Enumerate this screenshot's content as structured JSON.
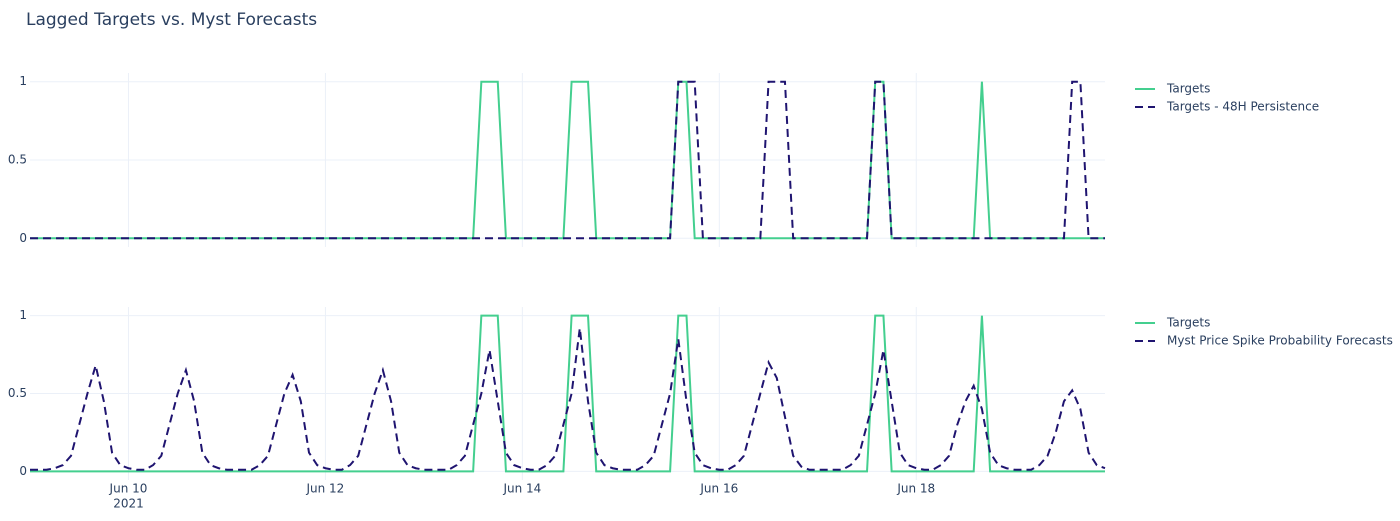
{
  "chart_data": [
    {
      "type": "line",
      "title": "Lagged Targets vs. Myst Forecasts",
      "x": [
        "2021-06-09T00:00",
        "2021-06-09T02:00",
        "2021-06-09T04:00",
        "2021-06-09T06:00",
        "2021-06-09T08:00",
        "2021-06-09T10:00",
        "2021-06-09T12:00",
        "2021-06-09T14:00",
        "2021-06-09T16:00",
        "2021-06-09T18:00",
        "2021-06-09T20:00",
        "2021-06-09T22:00",
        "2021-06-10T00:00",
        "2021-06-10T02:00",
        "2021-06-10T04:00",
        "2021-06-10T06:00",
        "2021-06-10T08:00",
        "2021-06-10T10:00",
        "2021-06-10T12:00",
        "2021-06-10T14:00",
        "2021-06-10T16:00",
        "2021-06-10T18:00",
        "2021-06-10T20:00",
        "2021-06-10T22:00",
        "2021-06-11T00:00",
        "2021-06-11T02:00",
        "2021-06-11T04:00",
        "2021-06-11T06:00",
        "2021-06-11T08:00",
        "2021-06-11T10:00",
        "2021-06-11T12:00",
        "2021-06-11T14:00",
        "2021-06-11T16:00",
        "2021-06-11T18:00",
        "2021-06-11T20:00",
        "2021-06-11T22:00",
        "2021-06-12T00:00",
        "2021-06-12T02:00",
        "2021-06-12T04:00",
        "2021-06-12T06:00",
        "2021-06-12T08:00",
        "2021-06-12T10:00",
        "2021-06-12T12:00",
        "2021-06-12T14:00",
        "2021-06-12T16:00",
        "2021-06-12T18:00",
        "2021-06-12T20:00",
        "2021-06-12T22:00",
        "2021-06-13T00:00",
        "2021-06-13T02:00",
        "2021-06-13T04:00",
        "2021-06-13T06:00",
        "2021-06-13T08:00",
        "2021-06-13T10:00",
        "2021-06-13T12:00",
        "2021-06-13T14:00",
        "2021-06-13T16:00",
        "2021-06-13T18:00",
        "2021-06-13T20:00",
        "2021-06-13T22:00",
        "2021-06-14T00:00",
        "2021-06-14T02:00",
        "2021-06-14T04:00",
        "2021-06-14T06:00",
        "2021-06-14T08:00",
        "2021-06-14T10:00",
        "2021-06-14T12:00",
        "2021-06-14T14:00",
        "2021-06-14T16:00",
        "2021-06-14T18:00",
        "2021-06-14T20:00",
        "2021-06-14T22:00",
        "2021-06-15T00:00",
        "2021-06-15T02:00",
        "2021-06-15T04:00",
        "2021-06-15T06:00",
        "2021-06-15T08:00",
        "2021-06-15T10:00",
        "2021-06-15T12:00",
        "2021-06-15T14:00",
        "2021-06-15T16:00",
        "2021-06-15T18:00",
        "2021-06-15T20:00",
        "2021-06-15T22:00",
        "2021-06-16T00:00",
        "2021-06-16T02:00",
        "2021-06-16T04:00",
        "2021-06-16T06:00",
        "2021-06-16T08:00",
        "2021-06-16T10:00",
        "2021-06-16T12:00",
        "2021-06-16T14:00",
        "2021-06-16T16:00",
        "2021-06-16T18:00",
        "2021-06-16T20:00",
        "2021-06-16T22:00",
        "2021-06-17T00:00",
        "2021-06-17T02:00",
        "2021-06-17T04:00",
        "2021-06-17T06:00",
        "2021-06-17T08:00",
        "2021-06-17T10:00",
        "2021-06-17T12:00",
        "2021-06-17T14:00",
        "2021-06-17T16:00",
        "2021-06-17T18:00",
        "2021-06-17T20:00",
        "2021-06-17T22:00",
        "2021-06-18T00:00",
        "2021-06-18T02:00",
        "2021-06-18T04:00",
        "2021-06-18T06:00",
        "2021-06-18T08:00",
        "2021-06-18T10:00",
        "2021-06-18T12:00",
        "2021-06-18T14:00",
        "2021-06-18T16:00",
        "2021-06-18T18:00",
        "2021-06-18T20:00",
        "2021-06-18T22:00",
        "2021-06-19T00:00",
        "2021-06-19T02:00",
        "2021-06-19T04:00",
        "2021-06-19T06:00",
        "2021-06-19T08:00",
        "2021-06-19T10:00",
        "2021-06-19T12:00",
        "2021-06-19T14:00",
        "2021-06-19T16:00",
        "2021-06-19T18:00",
        "2021-06-19T20:00",
        "2021-06-19T22:00"
      ],
      "series": [
        {
          "name": "Targets",
          "color": "#44cf8f",
          "dash": "solid",
          "values": [
            0,
            0,
            0,
            0,
            0,
            0,
            0,
            0,
            0,
            0,
            0,
            0,
            0,
            0,
            0,
            0,
            0,
            0,
            0,
            0,
            0,
            0,
            0,
            0,
            0,
            0,
            0,
            0,
            0,
            0,
            0,
            0,
            0,
            0,
            0,
            0,
            0,
            0,
            0,
            0,
            0,
            0,
            0,
            0,
            0,
            0,
            0,
            0,
            0,
            0,
            0,
            0,
            0,
            0,
            0,
            1,
            1,
            1,
            0,
            0,
            0,
            0,
            0,
            0,
            0,
            0,
            1,
            1,
            1,
            0,
            0,
            0,
            0,
            0,
            0,
            0,
            0,
            0,
            0,
            1,
            1,
            0,
            0,
            0,
            0,
            0,
            0,
            0,
            0,
            0,
            0,
            0,
            0,
            0,
            0,
            0,
            0,
            0,
            0,
            0,
            0,
            0,
            0,
            1,
            1,
            0,
            0,
            0,
            0,
            0,
            0,
            0,
            0,
            0,
            0,
            0,
            1,
            0,
            0,
            0,
            0,
            0,
            0,
            0,
            0,
            0,
            0,
            0,
            0,
            0,
            0,
            0
          ]
        },
        {
          "name": "Targets - 48H Persistence",
          "color": "#1f1470",
          "dash": "dash",
          "values": [
            0,
            0,
            0,
            0,
            0,
            0,
            0,
            0,
            0,
            0,
            0,
            0,
            0,
            0,
            0,
            0,
            0,
            0,
            0,
            0,
            0,
            0,
            0,
            0,
            0,
            0,
            0,
            0,
            0,
            0,
            0,
            0,
            0,
            0,
            0,
            0,
            0,
            0,
            0,
            0,
            0,
            0,
            0,
            0,
            0,
            0,
            0,
            0,
            0,
            0,
            0,
            0,
            0,
            0,
            0,
            0,
            0,
            0,
            0,
            0,
            0,
            0,
            0,
            0,
            0,
            0,
            0,
            0,
            0,
            0,
            0,
            0,
            0,
            0,
            0,
            0,
            0,
            0,
            0,
            1,
            1,
            1,
            0,
            0,
            0,
            0,
            0,
            0,
            0,
            0,
            1,
            1,
            1,
            0,
            0,
            0,
            0,
            0,
            0,
            0,
            0,
            0,
            0,
            1,
            1,
            0,
            0,
            0,
            0,
            0,
            0,
            0,
            0,
            0,
            0,
            0,
            0,
            0,
            0,
            0,
            0,
            0,
            0,
            0,
            0,
            0,
            0,
            1,
            1,
            0,
            0,
            0
          ]
        }
      ],
      "xlim": [
        "2021-06-09T00:00",
        "2021-06-19T22:00"
      ],
      "xticks": [
        "2021-06-10T00:00",
        "2021-06-12T00:00",
        "2021-06-14T00:00",
        "2021-06-16T00:00",
        "2021-06-18T00:00"
      ],
      "xtick_labels": false,
      "ylim": [
        -0.0556,
        1.0556
      ],
      "yticks": [
        0,
        0.5,
        1
      ],
      "grid": true,
      "legend": "right"
    },
    {
      "type": "line",
      "x": [
        "2021-06-09T00:00",
        "2021-06-09T02:00",
        "2021-06-09T04:00",
        "2021-06-09T06:00",
        "2021-06-09T08:00",
        "2021-06-09T10:00",
        "2021-06-09T12:00",
        "2021-06-09T14:00",
        "2021-06-09T16:00",
        "2021-06-09T18:00",
        "2021-06-09T20:00",
        "2021-06-09T22:00",
        "2021-06-10T00:00",
        "2021-06-10T02:00",
        "2021-06-10T04:00",
        "2021-06-10T06:00",
        "2021-06-10T08:00",
        "2021-06-10T10:00",
        "2021-06-10T12:00",
        "2021-06-10T14:00",
        "2021-06-10T16:00",
        "2021-06-10T18:00",
        "2021-06-10T20:00",
        "2021-06-10T22:00",
        "2021-06-11T00:00",
        "2021-06-11T02:00",
        "2021-06-11T04:00",
        "2021-06-11T06:00",
        "2021-06-11T08:00",
        "2021-06-11T10:00",
        "2021-06-11T12:00",
        "2021-06-11T14:00",
        "2021-06-11T16:00",
        "2021-06-11T18:00",
        "2021-06-11T20:00",
        "2021-06-11T22:00",
        "2021-06-12T00:00",
        "2021-06-12T02:00",
        "2021-06-12T04:00",
        "2021-06-12T06:00",
        "2021-06-12T08:00",
        "2021-06-12T10:00",
        "2021-06-12T12:00",
        "2021-06-12T14:00",
        "2021-06-12T16:00",
        "2021-06-12T18:00",
        "2021-06-12T20:00",
        "2021-06-12T22:00",
        "2021-06-13T00:00",
        "2021-06-13T02:00",
        "2021-06-13T04:00",
        "2021-06-13T06:00",
        "2021-06-13T08:00",
        "2021-06-13T10:00",
        "2021-06-13T12:00",
        "2021-06-13T14:00",
        "2021-06-13T16:00",
        "2021-06-13T18:00",
        "2021-06-13T20:00",
        "2021-06-13T22:00",
        "2021-06-14T00:00",
        "2021-06-14T02:00",
        "2021-06-14T04:00",
        "2021-06-14T06:00",
        "2021-06-14T08:00",
        "2021-06-14T10:00",
        "2021-06-14T12:00",
        "2021-06-14T14:00",
        "2021-06-14T16:00",
        "2021-06-14T18:00",
        "2021-06-14T20:00",
        "2021-06-14T22:00",
        "2021-06-15T00:00",
        "2021-06-15T02:00",
        "2021-06-15T04:00",
        "2021-06-15T06:00",
        "2021-06-15T08:00",
        "2021-06-15T10:00",
        "2021-06-15T12:00",
        "2021-06-15T14:00",
        "2021-06-15T16:00",
        "2021-06-15T18:00",
        "2021-06-15T20:00",
        "2021-06-15T22:00",
        "2021-06-16T00:00",
        "2021-06-16T02:00",
        "2021-06-16T04:00",
        "2021-06-16T06:00",
        "2021-06-16T08:00",
        "2021-06-16T10:00",
        "2021-06-16T12:00",
        "2021-06-16T14:00",
        "2021-06-16T16:00",
        "2021-06-16T18:00",
        "2021-06-16T20:00",
        "2021-06-16T22:00",
        "2021-06-17T00:00",
        "2021-06-17T02:00",
        "2021-06-17T04:00",
        "2021-06-17T06:00",
        "2021-06-17T08:00",
        "2021-06-17T10:00",
        "2021-06-17T12:00",
        "2021-06-17T14:00",
        "2021-06-17T16:00",
        "2021-06-17T18:00",
        "2021-06-17T20:00",
        "2021-06-17T22:00",
        "2021-06-18T00:00",
        "2021-06-18T02:00",
        "2021-06-18T04:00",
        "2021-06-18T06:00",
        "2021-06-18T08:00",
        "2021-06-18T10:00",
        "2021-06-18T12:00",
        "2021-06-18T14:00",
        "2021-06-18T16:00",
        "2021-06-18T18:00",
        "2021-06-18T20:00",
        "2021-06-18T22:00",
        "2021-06-19T00:00",
        "2021-06-19T02:00",
        "2021-06-19T04:00",
        "2021-06-19T06:00",
        "2021-06-19T08:00",
        "2021-06-19T10:00",
        "2021-06-19T12:00",
        "2021-06-19T14:00",
        "2021-06-19T16:00",
        "2021-06-19T18:00",
        "2021-06-19T20:00",
        "2021-06-19T22:00"
      ],
      "series": [
        {
          "name": "Targets",
          "color": "#44cf8f",
          "dash": "solid",
          "values": [
            0,
            0,
            0,
            0,
            0,
            0,
            0,
            0,
            0,
            0,
            0,
            0,
            0,
            0,
            0,
            0,
            0,
            0,
            0,
            0,
            0,
            0,
            0,
            0,
            0,
            0,
            0,
            0,
            0,
            0,
            0,
            0,
            0,
            0,
            0,
            0,
            0,
            0,
            0,
            0,
            0,
            0,
            0,
            0,
            0,
            0,
            0,
            0,
            0,
            0,
            0,
            0,
            0,
            0,
            0,
            1,
            1,
            1,
            0,
            0,
            0,
            0,
            0,
            0,
            0,
            0,
            1,
            1,
            1,
            0,
            0,
            0,
            0,
            0,
            0,
            0,
            0,
            0,
            0,
            1,
            1,
            0,
            0,
            0,
            0,
            0,
            0,
            0,
            0,
            0,
            0,
            0,
            0,
            0,
            0,
            0,
            0,
            0,
            0,
            0,
            0,
            0,
            0,
            1,
            1,
            0,
            0,
            0,
            0,
            0,
            0,
            0,
            0,
            0,
            0,
            0,
            1,
            0,
            0,
            0,
            0,
            0,
            0,
            0,
            0,
            0,
            0,
            0,
            0,
            0,
            0,
            0
          ]
        },
        {
          "name": "Myst Price Spike Probability Forecasts",
          "color": "#1f1470",
          "dash": "dash",
          "values": [
            0.01,
            0.01,
            0.01,
            0.02,
            0.04,
            0.1,
            0.3,
            0.5,
            0.68,
            0.45,
            0.12,
            0.04,
            0.02,
            0.01,
            0.01,
            0.04,
            0.1,
            0.3,
            0.5,
            0.65,
            0.45,
            0.12,
            0.04,
            0.02,
            0.01,
            0.01,
            0.01,
            0.01,
            0.04,
            0.1,
            0.3,
            0.5,
            0.62,
            0.45,
            0.12,
            0.04,
            0.02,
            0.01,
            0.01,
            0.04,
            0.1,
            0.3,
            0.5,
            0.65,
            0.45,
            0.12,
            0.04,
            0.02,
            0.01,
            0.01,
            0.01,
            0.01,
            0.04,
            0.1,
            0.3,
            0.5,
            0.78,
            0.45,
            0.12,
            0.04,
            0.02,
            0.01,
            0.01,
            0.04,
            0.1,
            0.3,
            0.5,
            0.92,
            0.45,
            0.12,
            0.04,
            0.02,
            0.01,
            0.01,
            0.01,
            0.04,
            0.1,
            0.3,
            0.5,
            0.85,
            0.45,
            0.12,
            0.04,
            0.02,
            0.01,
            0.01,
            0.04,
            0.1,
            0.3,
            0.5,
            0.7,
            0.6,
            0.35,
            0.1,
            0.03,
            0.01,
            0.01,
            0.01,
            0.01,
            0.01,
            0.04,
            0.1,
            0.3,
            0.5,
            0.78,
            0.45,
            0.12,
            0.04,
            0.02,
            0.01,
            0.01,
            0.04,
            0.1,
            0.3,
            0.45,
            0.55,
            0.4,
            0.12,
            0.04,
            0.02,
            0.01,
            0.01,
            0.01,
            0.04,
            0.1,
            0.25,
            0.45,
            0.52,
            0.4,
            0.12,
            0.04,
            0.02
          ]
        }
      ],
      "xlim": [
        "2021-06-09T00:00",
        "2021-06-19T22:00"
      ],
      "xticks": [
        {
          "value": "2021-06-10T00:00",
          "label": "Jun 10",
          "sublabel": "2021"
        },
        {
          "value": "2021-06-12T00:00",
          "label": "Jun 12"
        },
        {
          "value": "2021-06-14T00:00",
          "label": "Jun 14"
        },
        {
          "value": "2021-06-16T00:00",
          "label": "Jun 16"
        },
        {
          "value": "2021-06-18T00:00",
          "label": "Jun 18"
        }
      ],
      "xtick_labels": true,
      "ylim": [
        -0.0556,
        1.0556
      ],
      "yticks": [
        0,
        0.5,
        1
      ],
      "grid": true,
      "legend": "right"
    }
  ]
}
